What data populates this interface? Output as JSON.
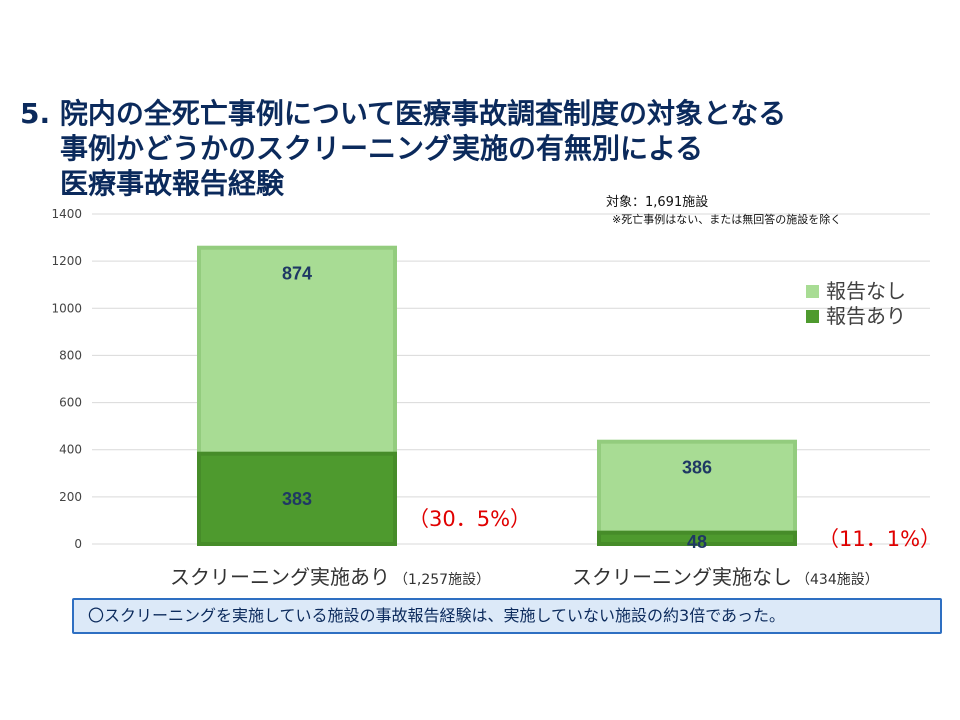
{
  "title": {
    "line1": "5. 院内の全死亡事例について医療事故調査制度の対象となる",
    "line2": "事例かどうかのスクリーニング実施の有無別による",
    "line3": "医療事故報告経験"
  },
  "note": {
    "target": "対象：1,691施設",
    "exclusion": "※死亡事例はない、または無回答の施設を除く"
  },
  "summary": "〇スクリーニングを実施している施設の事故報告経験は、実施していない施設の約3倍であった。",
  "colors": {
    "reported": "#4e9a2e",
    "not_reported": "#a8dc94",
    "axis_text": "#444444",
    "gridline": "#d9d9d9",
    "percent_text": "#e00000",
    "value_text": "#1f3864"
  },
  "chart_data": {
    "type": "bar",
    "stacked": true,
    "ylim": [
      0,
      1400
    ],
    "yticks": [
      0,
      200,
      400,
      600,
      800,
      1000,
      1200,
      1400
    ],
    "grid": true,
    "legend_position": "right",
    "categories": [
      "スクリーニング実施あり",
      "スクリーニング実施なし"
    ],
    "category_counts": [
      "（1,257施設）",
      "（434施設）"
    ],
    "series": [
      {
        "name": "報告あり",
        "values": [
          383,
          48
        ]
      },
      {
        "name": "報告なし",
        "values": [
          874,
          386
        ]
      }
    ],
    "percent_labels": [
      "（30．5%）",
      "（11．1%）"
    ]
  }
}
